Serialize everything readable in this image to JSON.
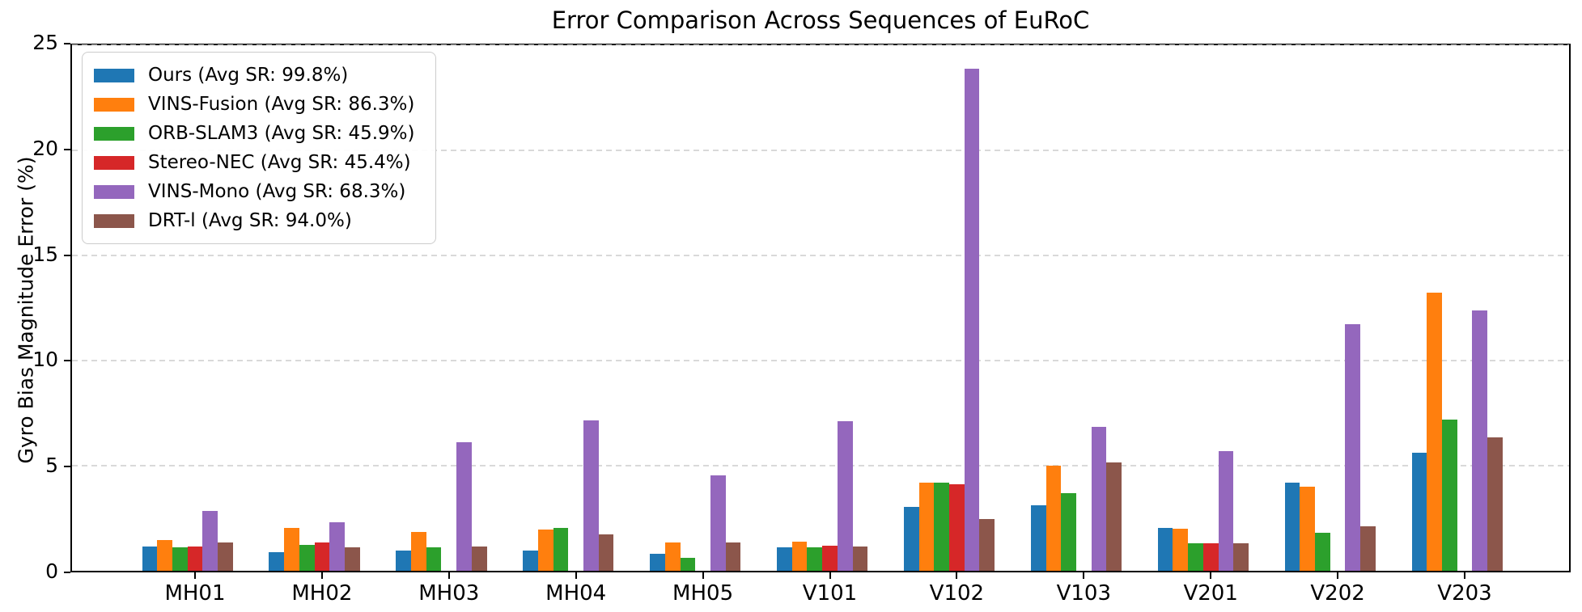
{
  "chart_data": {
    "type": "bar",
    "title": "Error Comparison Across Sequences of EuRoC",
    "xlabel": "",
    "ylabel": "Gyro Bias Magnitude Error (%)",
    "ylim": [
      0,
      25
    ],
    "yticks": [
      0,
      5,
      10,
      15,
      20,
      25
    ],
    "grid": "horizontal-dashed",
    "grid_color": "#d9d9d9",
    "legend_position": "upper-left",
    "categories": [
      "MH01",
      "MH02",
      "MH03",
      "MH04",
      "MH05",
      "V101",
      "V102",
      "V103",
      "V201",
      "V202",
      "V203"
    ],
    "series": [
      {
        "name": "Ours (Avg SR: 99.8%)",
        "color": "#1f77b4",
        "values": [
          1.15,
          0.9,
          0.95,
          0.95,
          0.8,
          1.1,
          3.05,
          3.1,
          2.05,
          4.2,
          5.6
        ]
      },
      {
        "name": "VINS-Fusion (Avg SR: 86.3%)",
        "color": "#ff7f0e",
        "values": [
          1.45,
          2.05,
          1.85,
          1.95,
          1.35,
          1.4,
          4.2,
          5.0,
          2.0,
          4.0,
          13.25
        ]
      },
      {
        "name": "ORB-SLAM3 (Avg SR: 45.9%)",
        "color": "#2ca02c",
        "values": [
          1.1,
          1.25,
          1.1,
          2.05,
          0.6,
          1.1,
          4.2,
          3.7,
          1.3,
          1.8,
          7.2
        ]
      },
      {
        "name": "Stereo-NEC (Avg SR: 45.4%)",
        "color": "#d62728",
        "values": [
          1.15,
          1.35,
          null,
          null,
          null,
          1.2,
          4.1,
          null,
          1.3,
          null,
          null
        ]
      },
      {
        "name": "VINS-Mono (Avg SR: 68.3%)",
        "color": "#9467bd",
        "values": [
          2.85,
          2.3,
          6.1,
          7.15,
          4.55,
          7.1,
          23.9,
          6.85,
          5.7,
          11.75,
          12.4
        ]
      },
      {
        "name": "DRT-l (Avg SR: 94.0%)",
        "color": "#8c564b",
        "values": [
          1.35,
          1.1,
          1.15,
          1.75,
          1.35,
          1.15,
          2.45,
          5.15,
          1.3,
          2.1,
          6.35
        ]
      }
    ]
  }
}
